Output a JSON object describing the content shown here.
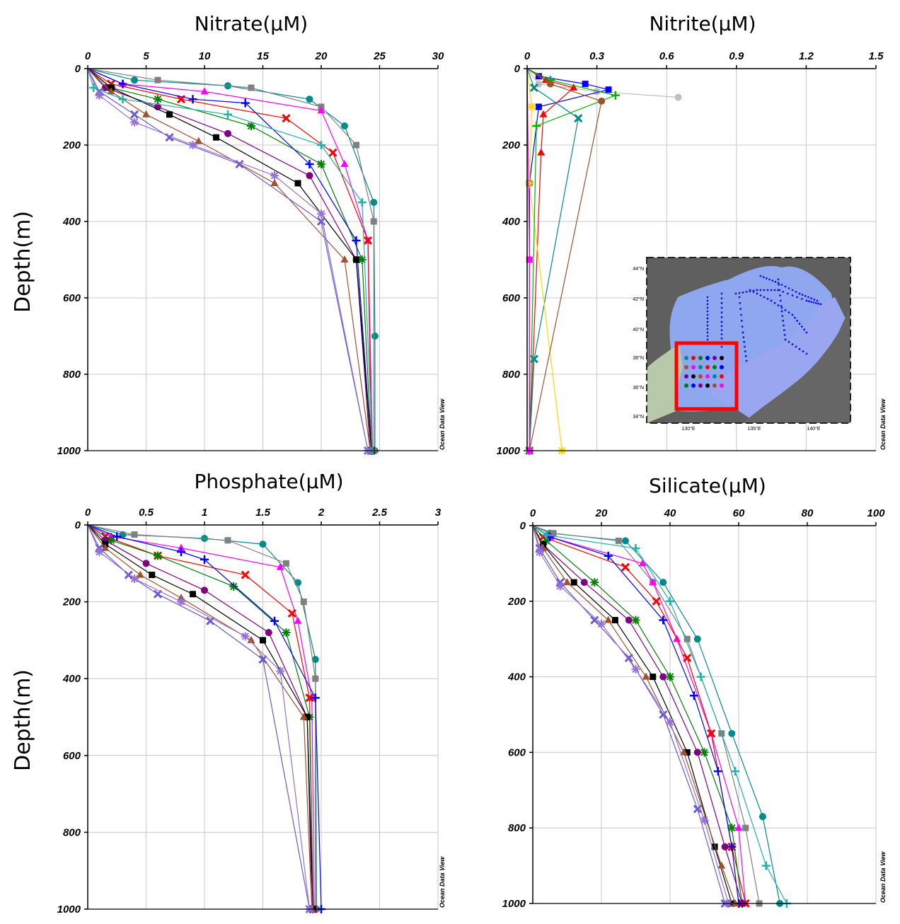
{
  "figure": {
    "ylabel": "Depth(m)",
    "watermark": "Ocean Data View"
  },
  "chart_data": [
    {
      "type": "line",
      "title": "Nitrate(μM)",
      "xlabel": "",
      "ylabel": "Depth(m)",
      "xlim": [
        0,
        30
      ],
      "ylim": [
        1000,
        0
      ],
      "x_ticks": [
        "0",
        "5",
        "10",
        "15",
        "20",
        "25",
        "30"
      ],
      "y_ticks": [
        "0",
        "200",
        "400",
        "600",
        "800",
        "1000"
      ],
      "grid": true,
      "series": [
        {
          "color": "#008b8b",
          "x": [
            0,
            4,
            12,
            19,
            22,
            24.5,
            24.6,
            24.6
          ],
          "y": [
            0,
            30,
            45,
            80,
            150,
            350,
            700,
            1000
          ]
        },
        {
          "color": "#808080",
          "x": [
            0,
            6,
            14,
            20,
            23,
            24.5,
            24.5
          ],
          "y": [
            0,
            30,
            50,
            100,
            200,
            400,
            1000
          ]
        },
        {
          "color": "#ff00ff",
          "x": [
            0,
            3,
            10,
            20,
            22,
            24,
            24.4
          ],
          "y": [
            0,
            40,
            60,
            110,
            250,
            450,
            1000
          ]
        },
        {
          "color": "#ff0000",
          "x": [
            0,
            2,
            8,
            17,
            21,
            24,
            24.3
          ],
          "y": [
            0,
            40,
            80,
            130,
            220,
            450,
            1000
          ]
        },
        {
          "color": "#008000",
          "x": [
            0,
            2,
            6,
            14,
            20,
            23.5,
            24.3
          ],
          "y": [
            0,
            50,
            80,
            150,
            250,
            500,
            1000
          ]
        },
        {
          "color": "#0000ff",
          "x": [
            0,
            3,
            9,
            13.5,
            19,
            23,
            24.3
          ],
          "y": [
            0,
            40,
            80,
            90,
            250,
            450,
            1000
          ]
        },
        {
          "color": "#800080",
          "x": [
            0,
            1.5,
            6,
            12,
            19,
            23,
            24.2
          ],
          "y": [
            0,
            50,
            100,
            170,
            280,
            500,
            1000
          ]
        },
        {
          "color": "#000000",
          "x": [
            0,
            2,
            7,
            11,
            18,
            23,
            24.3
          ],
          "y": [
            0,
            50,
            120,
            180,
            300,
            500,
            1000
          ]
        },
        {
          "color": "#a0522d",
          "x": [
            0,
            2,
            5,
            9.5,
            16,
            22,
            24.2
          ],
          "y": [
            0,
            60,
            120,
            190,
            300,
            500,
            1000
          ]
        },
        {
          "color": "#6a5acd",
          "x": [
            0,
            1,
            4,
            7,
            13,
            20,
            24.0
          ],
          "y": [
            0,
            60,
            120,
            180,
            250,
            400,
            1000
          ]
        },
        {
          "color": "#9370db",
          "x": [
            0,
            1,
            4,
            9,
            16,
            20,
            24.0
          ],
          "y": [
            0,
            70,
            140,
            200,
            280,
            380,
            1000
          ]
        },
        {
          "color": "#20b2aa",
          "x": [
            0,
            0.5,
            3,
            12,
            20,
            23.5,
            24.4
          ],
          "y": [
            0,
            50,
            80,
            120,
            200,
            350,
            1000
          ]
        }
      ]
    },
    {
      "type": "line",
      "title": "Nitrite(μM)",
      "xlabel": "",
      "ylabel": "",
      "xlim": [
        0,
        1.5
      ],
      "ylim": [
        1000,
        0
      ],
      "x_ticks": [
        "0",
        "0.3",
        "0.6",
        "0.9",
        "1.2",
        "1.5"
      ],
      "y_ticks": [
        "0",
        "200",
        "400",
        "600",
        "800",
        "1000"
      ],
      "grid": true,
      "series": [
        {
          "color": "#c0c0c0",
          "x": [
            0,
            0.05,
            0.3,
            0.65
          ],
          "y": [
            0,
            40,
            60,
            75
          ]
        },
        {
          "color": "#0000ff",
          "x": [
            0,
            0.05,
            0.25,
            0.35,
            0.05,
            0.01,
            0.01
          ],
          "y": [
            0,
            20,
            40,
            55,
            100,
            300,
            1000
          ]
        },
        {
          "color": "#ff0000",
          "x": [
            0,
            0.08,
            0.2,
            0.07,
            0.06,
            0.01
          ],
          "y": [
            0,
            30,
            50,
            120,
            220,
            1000
          ]
        },
        {
          "color": "#008b8b",
          "x": [
            0,
            0.03,
            0.22,
            0.03,
            0.01
          ],
          "y": [
            0,
            50,
            130,
            760,
            1000
          ]
        },
        {
          "color": "#ffd700",
          "x": [
            0,
            0.02,
            0.01,
            0.15
          ],
          "y": [
            0,
            100,
            300,
            1000
          ]
        },
        {
          "color": "#00b000",
          "x": [
            0,
            0.1,
            0.38,
            0.04,
            0.01
          ],
          "y": [
            0,
            30,
            70,
            150,
            1000
          ]
        },
        {
          "color": "#a0522d",
          "x": [
            0,
            0.1,
            0.32,
            0.01
          ],
          "y": [
            0,
            40,
            85,
            1000
          ]
        },
        {
          "color": "#ff00ff",
          "x": [
            0,
            0.01,
            0.01
          ],
          "y": [
            0,
            500,
            1000
          ]
        }
      ]
    },
    {
      "type": "line",
      "title": "Phosphate(μM)",
      "xlabel": "",
      "ylabel": "Depth(m)",
      "xlim": [
        0,
        3
      ],
      "ylim": [
        1000,
        0
      ],
      "x_ticks": [
        "0",
        "0.5",
        "1",
        "1.5",
        "2",
        "2.5",
        "3"
      ],
      "y_ticks": [
        "0",
        "200",
        "400",
        "600",
        "800",
        "1000"
      ],
      "grid": true,
      "series": [
        {
          "color": "#008b8b",
          "x": [
            0,
            0.3,
            1.0,
            1.5,
            1.8,
            1.95,
            1.96
          ],
          "y": [
            0,
            25,
            35,
            50,
            150,
            350,
            1000
          ]
        },
        {
          "color": "#808080",
          "x": [
            0,
            0.4,
            1.2,
            1.7,
            1.85,
            1.95,
            1.95
          ],
          "y": [
            0,
            25,
            40,
            100,
            200,
            400,
            1000
          ]
        },
        {
          "color": "#ff00ff",
          "x": [
            0,
            0.2,
            0.8,
            1.65,
            1.8,
            1.92,
            1.94
          ],
          "y": [
            0,
            30,
            60,
            110,
            250,
            450,
            1000
          ]
        },
        {
          "color": "#ff0000",
          "x": [
            0,
            0.15,
            0.6,
            1.35,
            1.75,
            1.9,
            1.93
          ],
          "y": [
            0,
            30,
            80,
            130,
            230,
            450,
            1000
          ]
        },
        {
          "color": "#008000",
          "x": [
            0,
            0.2,
            0.6,
            1.25,
            1.7,
            1.9,
            1.93
          ],
          "y": [
            0,
            40,
            80,
            160,
            280,
            500,
            1000
          ]
        },
        {
          "color": "#0000ff",
          "x": [
            0,
            0.25,
            0.8,
            1.0,
            1.6,
            1.95,
            2.0
          ],
          "y": [
            0,
            30,
            70,
            90,
            250,
            450,
            1000
          ]
        },
        {
          "color": "#800080",
          "x": [
            0,
            0.15,
            0.5,
            1.0,
            1.55,
            1.88,
            1.92
          ],
          "y": [
            0,
            40,
            100,
            170,
            280,
            500,
            1000
          ]
        },
        {
          "color": "#000000",
          "x": [
            0,
            0.15,
            0.55,
            0.9,
            1.5,
            1.88,
            1.93
          ],
          "y": [
            0,
            50,
            130,
            180,
            300,
            500,
            1000
          ]
        },
        {
          "color": "#a0522d",
          "x": [
            0,
            0.15,
            0.45,
            0.8,
            1.4,
            1.85,
            1.92
          ],
          "y": [
            0,
            60,
            130,
            190,
            300,
            500,
            1000
          ]
        },
        {
          "color": "#6a5acd",
          "x": [
            0,
            0.1,
            0.35,
            0.6,
            1.05,
            1.5,
            1.9
          ],
          "y": [
            0,
            60,
            130,
            180,
            250,
            350,
            1000
          ]
        },
        {
          "color": "#9370db",
          "x": [
            0,
            0.1,
            0.4,
            0.8,
            1.35,
            1.65,
            1.9
          ],
          "y": [
            0,
            70,
            140,
            200,
            290,
            380,
            1000
          ]
        }
      ]
    },
    {
      "type": "line",
      "title": "Silicate(μM)",
      "xlabel": "",
      "ylabel": "",
      "xlim": [
        0,
        100
      ],
      "ylim": [
        1000,
        0
      ],
      "x_ticks": [
        "0",
        "20",
        "40",
        "60",
        "80",
        "100"
      ],
      "y_ticks": [
        "0",
        "200",
        "400",
        "600",
        "800",
        "1000"
      ],
      "grid": true,
      "series": [
        {
          "color": "#008b8b",
          "x": [
            0,
            5,
            27,
            38,
            48,
            58,
            67,
            72
          ],
          "y": [
            0,
            20,
            40,
            150,
            300,
            550,
            770,
            1000
          ]
        },
        {
          "color": "#808080",
          "x": [
            0,
            6,
            25,
            35,
            45,
            55,
            62,
            66
          ],
          "y": [
            0,
            20,
            40,
            150,
            300,
            550,
            800,
            1000
          ]
        },
        {
          "color": "#ff00ff",
          "x": [
            0,
            5,
            32,
            35,
            42,
            52,
            60,
            62
          ],
          "y": [
            0,
            30,
            100,
            150,
            300,
            550,
            800,
            1000
          ]
        },
        {
          "color": "#ff0000",
          "x": [
            0,
            3,
            27,
            36,
            45,
            52,
            58,
            62
          ],
          "y": [
            0,
            30,
            110,
            200,
            350,
            550,
            850,
            1000
          ]
        },
        {
          "color": "#008000",
          "x": [
            0,
            4,
            18,
            30,
            40,
            50,
            58,
            61
          ],
          "y": [
            0,
            40,
            150,
            250,
            400,
            600,
            800,
            1000
          ]
        },
        {
          "color": "#0000ff",
          "x": [
            0,
            5,
            22,
            38,
            47,
            54,
            58,
            60
          ],
          "y": [
            0,
            30,
            80,
            250,
            450,
            650,
            850,
            1000
          ]
        },
        {
          "color": "#800080",
          "x": [
            0,
            3,
            15,
            28,
            38,
            48,
            56,
            61
          ],
          "y": [
            0,
            50,
            150,
            250,
            400,
            600,
            850,
            1000
          ]
        },
        {
          "color": "#000000",
          "x": [
            0,
            3,
            12,
            24,
            35,
            45,
            53,
            58
          ],
          "y": [
            0,
            50,
            150,
            250,
            400,
            600,
            850,
            1000
          ]
        },
        {
          "color": "#a0522d",
          "x": [
            0,
            3,
            10,
            22,
            33,
            44,
            55,
            59
          ],
          "y": [
            0,
            60,
            150,
            250,
            400,
            600,
            900,
            1000
          ]
        },
        {
          "color": "#6a5acd",
          "x": [
            0,
            2,
            8,
            18,
            28,
            38,
            48,
            56
          ],
          "y": [
            0,
            60,
            150,
            250,
            350,
            500,
            750,
            1000
          ]
        },
        {
          "color": "#9370db",
          "x": [
            0,
            2,
            8,
            20,
            30,
            40,
            50,
            57
          ],
          "y": [
            0,
            70,
            160,
            260,
            380,
            520,
            780,
            1000
          ]
        },
        {
          "color": "#20b2aa",
          "x": [
            0,
            4,
            30,
            40,
            49,
            59,
            68,
            74
          ],
          "y": [
            0,
            25,
            60,
            200,
            400,
            650,
            900,
            1000
          ]
        }
      ]
    }
  ],
  "inset_map": {
    "lat_ticks": [
      "44°N",
      "42°N",
      "40°N",
      "38°N",
      "36°N",
      "34°N"
    ],
    "lon_ticks": [
      "130°E",
      "135°E",
      "140°E"
    ],
    "highlight_color": "#ff0000"
  }
}
